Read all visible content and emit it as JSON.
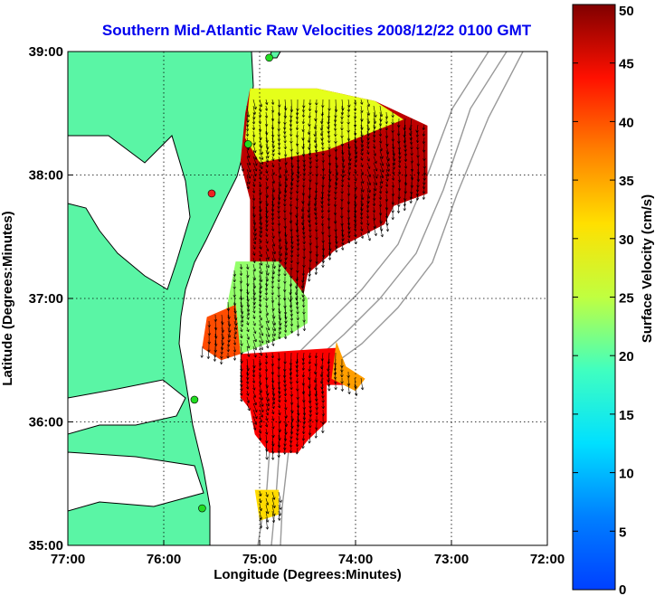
{
  "chart_data": {
    "type": "heatmap",
    "title": "Southern Mid-Atlantic Raw Velocities 2008/12/22 0100 GMT",
    "xlabel": "Longitude (Degrees:Minutes)",
    "ylabel": "Latitude (Degrees:Minutes)",
    "xlim": [
      -77,
      -72
    ],
    "ylim": [
      35,
      39
    ],
    "x_ticks": [
      -77,
      -76,
      -75,
      -74,
      -73,
      -72
    ],
    "x_tick_labels": [
      "77:00",
      "76:00",
      "75:00",
      "74:00",
      "73:00",
      "72:00"
    ],
    "y_ticks": [
      35,
      36,
      37,
      38,
      39
    ],
    "y_tick_labels": [
      "35:00",
      "36:00",
      "37:00",
      "38:00",
      "39:00"
    ],
    "grid": true,
    "colorbar": {
      "label": "Surface Velocity (cm/s)",
      "range": [
        0,
        50
      ],
      "ticks": [
        0,
        5,
        10,
        15,
        20,
        25,
        30,
        35,
        40,
        45,
        50
      ],
      "colormap": "jet"
    },
    "colors": {
      "land": "#5af5a5",
      "coast": "#000000",
      "title": "#0000ee",
      "station": "#22dd22",
      "station_alt": "#ee2222"
    },
    "stations": [
      {
        "lon": -74.9,
        "lat": 38.95,
        "status": "active"
      },
      {
        "lon": -75.12,
        "lat": 38.25,
        "status": "active"
      },
      {
        "lon": -75.5,
        "lat": 37.85,
        "status": "alert"
      },
      {
        "lon": -75.68,
        "lat": 36.18,
        "status": "active"
      },
      {
        "lon": -75.6,
        "lat": 35.3,
        "status": "active"
      }
    ],
    "velocity_regions": [
      {
        "name": "northern-core",
        "polygon": [
          [
            -75.1,
            38.7
          ],
          [
            -74.4,
            38.7
          ],
          [
            -73.8,
            38.6
          ],
          [
            -73.25,
            38.4
          ],
          [
            -73.25,
            37.85
          ],
          [
            -73.6,
            37.75
          ],
          [
            -73.7,
            37.6
          ],
          [
            -74.2,
            37.4
          ],
          [
            -74.5,
            37.2
          ],
          [
            -74.55,
            37.0
          ],
          [
            -74.9,
            37.0
          ],
          [
            -75.1,
            37.2
          ],
          [
            -75.1,
            37.8
          ],
          [
            -75.2,
            38.1
          ],
          [
            -75.15,
            38.5
          ]
        ],
        "mean_speed": 47
      },
      {
        "name": "northern-edge",
        "polygon": [
          [
            -75.1,
            38.7
          ],
          [
            -74.4,
            38.7
          ],
          [
            -73.8,
            38.6
          ],
          [
            -73.5,
            38.45
          ],
          [
            -74.3,
            38.2
          ],
          [
            -75.0,
            38.1
          ],
          [
            -75.15,
            38.3
          ]
        ],
        "mean_speed": 30
      },
      {
        "name": "mid-channel",
        "polygon": [
          [
            -75.25,
            37.3
          ],
          [
            -74.8,
            37.3
          ],
          [
            -74.5,
            37.0
          ],
          [
            -74.5,
            36.8
          ],
          [
            -74.7,
            36.7
          ],
          [
            -75.2,
            36.55
          ],
          [
            -75.4,
            36.7
          ],
          [
            -75.35,
            36.9
          ]
        ],
        "mean_speed": 26
      },
      {
        "name": "west-lobe",
        "polygon": [
          [
            -75.55,
            36.85
          ],
          [
            -75.25,
            36.95
          ],
          [
            -75.2,
            36.55
          ],
          [
            -75.4,
            36.5
          ],
          [
            -75.6,
            36.6
          ]
        ],
        "mean_speed": 40
      },
      {
        "name": "southern-core",
        "polygon": [
          [
            -75.2,
            36.55
          ],
          [
            -74.2,
            36.6
          ],
          [
            -74.1,
            36.3
          ],
          [
            -74.3,
            36.3
          ],
          [
            -74.3,
            36.0
          ],
          [
            -74.5,
            35.85
          ],
          [
            -74.6,
            35.75
          ],
          [
            -74.9,
            35.75
          ],
          [
            -75.05,
            35.9
          ],
          [
            -75.1,
            36.1
          ],
          [
            -75.2,
            36.2
          ]
        ],
        "mean_speed": 44
      },
      {
        "name": "east-spur",
        "polygon": [
          [
            -74.2,
            36.65
          ],
          [
            -74.1,
            36.45
          ],
          [
            -73.9,
            36.35
          ],
          [
            -74.0,
            36.25
          ],
          [
            -74.25,
            36.35
          ]
        ],
        "mean_speed": 36
      },
      {
        "name": "southern-patch",
        "polygon": [
          [
            -75.05,
            35.45
          ],
          [
            -74.8,
            35.45
          ],
          [
            -74.8,
            35.25
          ],
          [
            -75.0,
            35.2
          ]
        ],
        "mean_speed": 33
      }
    ]
  }
}
